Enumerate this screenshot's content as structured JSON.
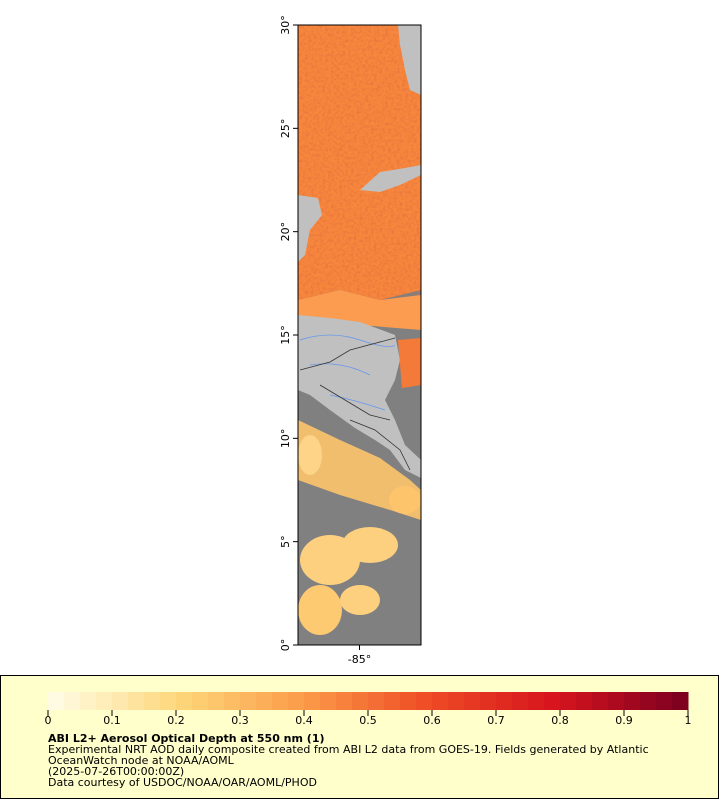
{
  "map": {
    "xlim": [
      -88,
      -82
    ],
    "ylim": [
      0,
      30
    ],
    "xticks": [
      {
        "value": -85,
        "label": "-85°"
      }
    ],
    "yticks": [
      {
        "value": 0,
        "label": "0°"
      },
      {
        "value": 5,
        "label": "5°"
      },
      {
        "value": 10,
        "label": "10°"
      },
      {
        "value": 15,
        "label": "15°"
      },
      {
        "value": 20,
        "label": "20°"
      },
      {
        "value": 25,
        "label": "25°"
      },
      {
        "value": 30,
        "label": "30°"
      }
    ]
  },
  "colorbar": {
    "lim": [
      0,
      1
    ],
    "ticks": [
      0,
      0.1,
      0.2,
      0.3,
      0.4,
      0.5,
      0.6,
      0.7,
      0.8,
      0.9,
      1
    ],
    "colors": [
      "#fffbe2",
      "#fed67a",
      "#fb9a48",
      "#ee4a24",
      "#d7141e",
      "#800020"
    ]
  },
  "legend": {
    "title": "ABI L2+ Aerosol Optical Depth at 550 nm (1)",
    "description": [
      "Experimental NRT AOD daily composite created from ABI L2 data from GOES-19. Fields generated by Atlantic",
      "OceanWatch node at NOAA/AOML"
    ],
    "time": "(2025-07-26T00:00:00Z)",
    "credit": "Data courtesy of USDOC/NOAA/OAR/AOML/PHOD"
  }
}
